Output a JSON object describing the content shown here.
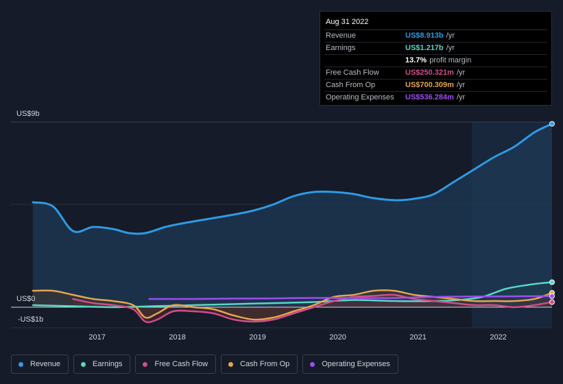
{
  "tooltip": {
    "date": "Aug 31 2022",
    "rows": [
      {
        "label": "Revenue",
        "value": "US$8.913b",
        "unit": "/yr",
        "color": "#2e9be3"
      },
      {
        "label": "Earnings",
        "value": "US$1.217b",
        "unit": "/yr",
        "color": "#58d7c9"
      },
      {
        "label": "",
        "value": "13.7%",
        "unit": "profit margin",
        "color": "#ffffff"
      },
      {
        "label": "Free Cash Flow",
        "value": "US$250.321m",
        "unit": "/yr",
        "color": "#d14d8a"
      },
      {
        "label": "Cash From Op",
        "value": "US$700.309m",
        "unit": "/yr",
        "color": "#e5a650"
      },
      {
        "label": "Operating Expenses",
        "value": "US$536.284m",
        "unit": "/yr",
        "color": "#9b4ff0"
      }
    ]
  },
  "axis": {
    "top": "US$9b",
    "zero": "US$0",
    "bottom": "-US$1b"
  },
  "legend": [
    {
      "label": "Revenue",
      "color": "#2e9be3"
    },
    {
      "label": "Earnings",
      "color": "#58d7c9"
    },
    {
      "label": "Free Cash Flow",
      "color": "#d14d8a"
    },
    {
      "label": "Cash From Op",
      "color": "#e5a650"
    },
    {
      "label": "Operating Expenses",
      "color": "#9b4ff0"
    }
  ],
  "chart_data": {
    "type": "line",
    "ylim": [
      -1,
      9
    ],
    "x_ticks": [
      2017,
      2018,
      2019,
      2020,
      2021,
      2022
    ],
    "series": [
      {
        "name": "Revenue",
        "color": "#2e9be3",
        "x": [
          2016.2,
          2016.45,
          2016.7,
          2016.95,
          2017.2,
          2017.4,
          2017.6,
          2017.85,
          2018.1,
          2018.4,
          2018.7,
          2018.95,
          2019.2,
          2019.45,
          2019.7,
          2019.95,
          2020.2,
          2020.45,
          2020.75,
          2021.0,
          2021.2,
          2021.45,
          2021.7,
          2021.95,
          2022.2,
          2022.45,
          2022.67
        ],
        "y": [
          5.1,
          4.9,
          3.7,
          3.9,
          3.8,
          3.6,
          3.6,
          3.9,
          4.1,
          4.3,
          4.5,
          4.7,
          5.0,
          5.4,
          5.6,
          5.6,
          5.5,
          5.3,
          5.2,
          5.3,
          5.5,
          6.1,
          6.7,
          7.3,
          7.8,
          8.5,
          8.913
        ]
      },
      {
        "name": "Earnings",
        "color": "#58d7c9",
        "x": [
          2016.2,
          2016.7,
          2017.2,
          2017.7,
          2018.2,
          2018.7,
          2019.2,
          2019.7,
          2020.2,
          2020.7,
          2021.2,
          2021.5,
          2021.8,
          2022.1,
          2022.4,
          2022.67
        ],
        "y": [
          0.1,
          0.05,
          0.0,
          0.05,
          0.1,
          0.15,
          0.2,
          0.25,
          0.35,
          0.3,
          0.3,
          0.35,
          0.5,
          0.9,
          1.1,
          1.217
        ]
      },
      {
        "name": "Free Cash Flow",
        "color": "#d14d8a",
        "x": [
          2016.7,
          2016.95,
          2017.2,
          2017.45,
          2017.6,
          2017.75,
          2017.95,
          2018.2,
          2018.45,
          2018.7,
          2018.95,
          2019.2,
          2019.45,
          2019.7,
          2019.95,
          2020.2,
          2020.45,
          2020.7,
          2020.95,
          2021.2,
          2021.45,
          2021.7,
          2021.95,
          2022.2,
          2022.45,
          2022.67
        ],
        "y": [
          0.4,
          0.2,
          0.1,
          -0.1,
          -0.7,
          -0.6,
          -0.2,
          -0.2,
          -0.3,
          -0.6,
          -0.7,
          -0.6,
          -0.3,
          0.0,
          0.3,
          0.5,
          0.55,
          0.6,
          0.4,
          0.3,
          0.2,
          0.1,
          0.1,
          0.0,
          0.1,
          0.250321
        ]
      },
      {
        "name": "Cash From Op",
        "color": "#e5a650",
        "x": [
          2016.2,
          2016.45,
          2016.7,
          2016.95,
          2017.2,
          2017.45,
          2017.6,
          2017.75,
          2017.95,
          2018.2,
          2018.45,
          2018.7,
          2018.95,
          2019.2,
          2019.45,
          2019.7,
          2019.95,
          2020.2,
          2020.45,
          2020.7,
          2020.95,
          2021.2,
          2021.45,
          2021.7,
          2021.95,
          2022.2,
          2022.45,
          2022.67
        ],
        "y": [
          0.8,
          0.8,
          0.6,
          0.4,
          0.3,
          0.1,
          -0.5,
          -0.3,
          0.1,
          0.0,
          -0.1,
          -0.4,
          -0.6,
          -0.5,
          -0.2,
          0.1,
          0.5,
          0.6,
          0.8,
          0.8,
          0.6,
          0.5,
          0.4,
          0.3,
          0.3,
          0.3,
          0.4,
          0.700309
        ]
      },
      {
        "name": "Operating Expenses",
        "color": "#9b4ff0",
        "x": [
          2017.65,
          2018.2,
          2018.7,
          2019.2,
          2019.7,
          2020.2,
          2020.7,
          2021.2,
          2021.7,
          2022.2,
          2022.67
        ],
        "y": [
          0.4,
          0.4,
          0.42,
          0.43,
          0.45,
          0.45,
          0.45,
          0.5,
          0.52,
          0.53,
          0.536284
        ]
      }
    ]
  }
}
